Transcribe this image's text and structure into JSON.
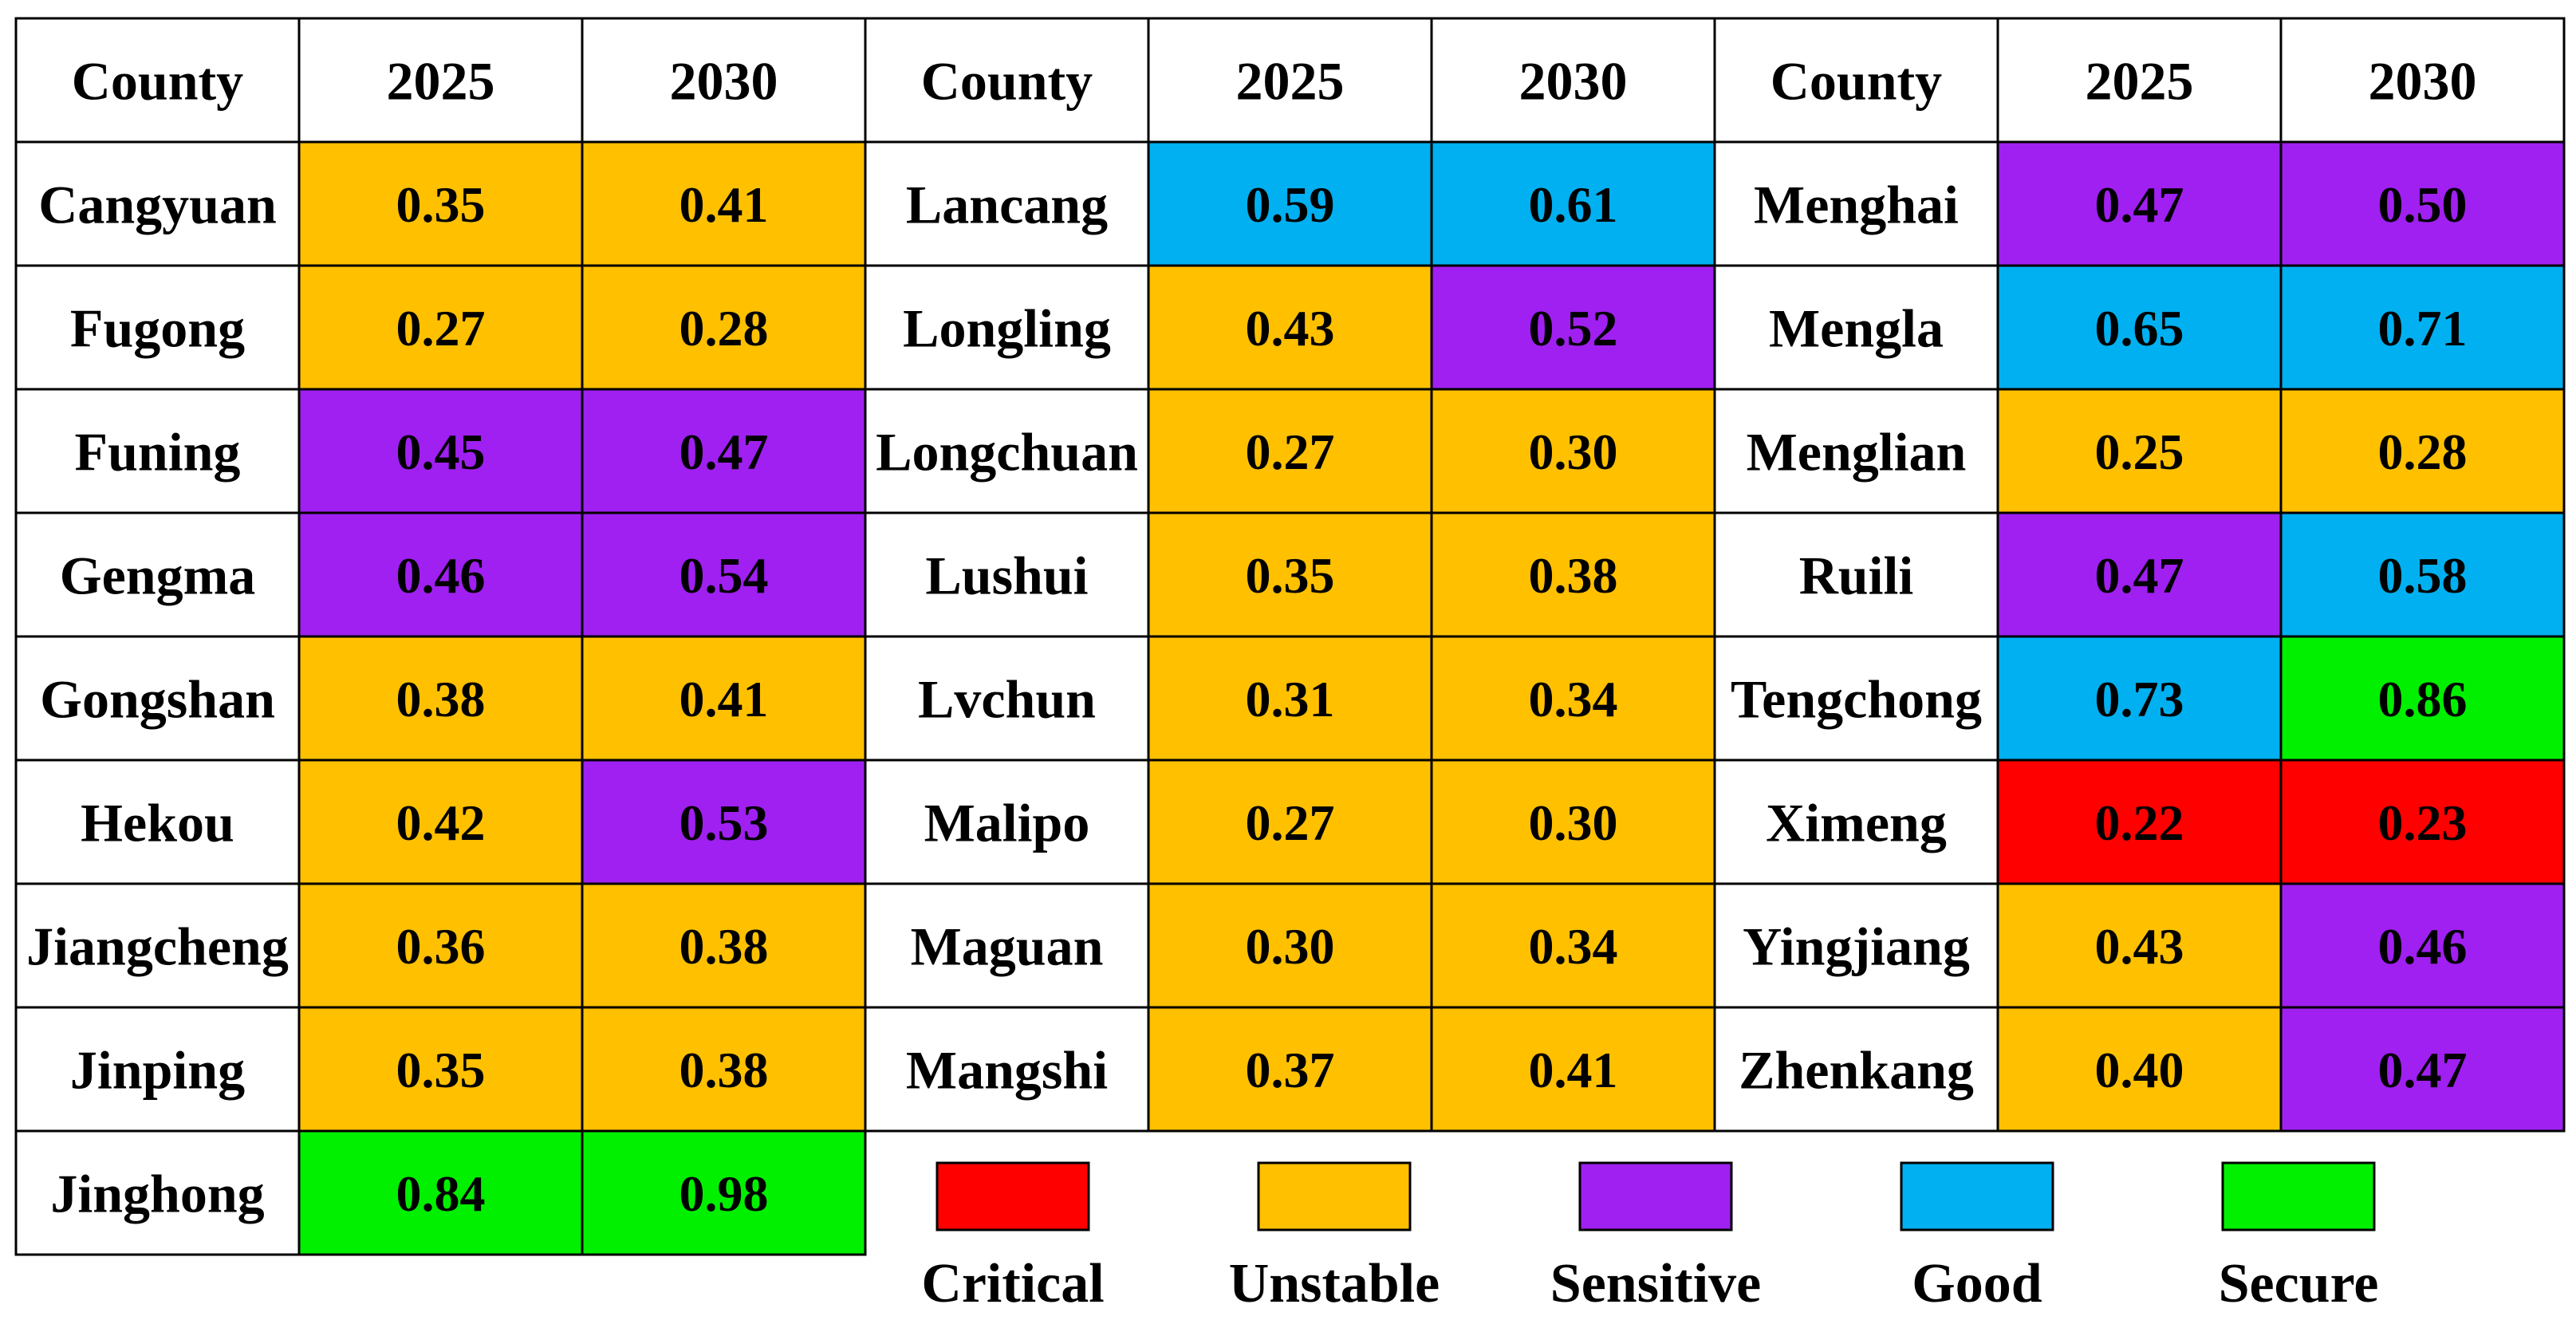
{
  "chart_data": {
    "type": "table",
    "headers": [
      "County",
      "2025",
      "2030",
      "County",
      "2025",
      "2030",
      "County",
      "2025",
      "2030"
    ],
    "colors": {
      "Critical": "#ff0000",
      "Unstable": "#ffc000",
      "Sensitive": "#9f20f0",
      "Good": "#00b0f0",
      "Secure": "#00f000"
    },
    "groups": [
      {
        "rows": [
          {
            "county": "Cangyuan",
            "v2025": "0.35",
            "c2025": "Unstable",
            "v2030": "0.41",
            "c2030": "Unstable"
          },
          {
            "county": "Fugong",
            "v2025": "0.27",
            "c2025": "Unstable",
            "v2030": "0.28",
            "c2030": "Unstable"
          },
          {
            "county": "Funing",
            "v2025": "0.45",
            "c2025": "Sensitive",
            "v2030": "0.47",
            "c2030": "Sensitive"
          },
          {
            "county": "Gengma",
            "v2025": "0.46",
            "c2025": "Sensitive",
            "v2030": "0.54",
            "c2030": "Sensitive"
          },
          {
            "county": "Gongshan",
            "v2025": "0.38",
            "c2025": "Unstable",
            "v2030": "0.41",
            "c2030": "Unstable"
          },
          {
            "county": "Hekou",
            "v2025": "0.42",
            "c2025": "Unstable",
            "v2030": "0.53",
            "c2030": "Sensitive"
          },
          {
            "county": "Jiangcheng",
            "v2025": "0.36",
            "c2025": "Unstable",
            "v2030": "0.38",
            "c2030": "Unstable"
          },
          {
            "county": "Jinping",
            "v2025": "0.35",
            "c2025": "Unstable",
            "v2030": "0.38",
            "c2030": "Unstable"
          },
          {
            "county": "Jinghong",
            "v2025": "0.84",
            "c2025": "Secure",
            "v2030": "0.98",
            "c2030": "Secure"
          }
        ]
      },
      {
        "rows": [
          {
            "county": "Lancang",
            "v2025": "0.59",
            "c2025": "Good",
            "v2030": "0.61",
            "c2030": "Good"
          },
          {
            "county": "Longling",
            "v2025": "0.43",
            "c2025": "Unstable",
            "v2030": "0.52",
            "c2030": "Sensitive"
          },
          {
            "county": "Longchuan",
            "v2025": "0.27",
            "c2025": "Unstable",
            "v2030": "0.30",
            "c2030": "Unstable"
          },
          {
            "county": "Lushui",
            "v2025": "0.35",
            "c2025": "Unstable",
            "v2030": "0.38",
            "c2030": "Unstable"
          },
          {
            "county": "Lvchun",
            "v2025": "0.31",
            "c2025": "Unstable",
            "v2030": "0.34",
            "c2030": "Unstable"
          },
          {
            "county": "Malipo",
            "v2025": "0.27",
            "c2025": "Unstable",
            "v2030": "0.30",
            "c2030": "Unstable"
          },
          {
            "county": "Maguan",
            "v2025": "0.30",
            "c2025": "Unstable",
            "v2030": "0.34",
            "c2030": "Unstable"
          },
          {
            "county": "Mangshi",
            "v2025": "0.37",
            "c2025": "Unstable",
            "v2030": "0.41",
            "c2030": "Unstable"
          }
        ]
      },
      {
        "rows": [
          {
            "county": "Menghai",
            "v2025": "0.47",
            "c2025": "Sensitive",
            "v2030": "0.50",
            "c2030": "Sensitive"
          },
          {
            "county": "Mengla",
            "v2025": "0.65",
            "c2025": "Good",
            "v2030": "0.71",
            "c2030": "Good"
          },
          {
            "county": "Menglian",
            "v2025": "0.25",
            "c2025": "Unstable",
            "v2030": "0.28",
            "c2030": "Unstable"
          },
          {
            "county": "Ruili",
            "v2025": "0.47",
            "c2025": "Sensitive",
            "v2030": "0.58",
            "c2030": "Good"
          },
          {
            "county": "Tengchong",
            "v2025": "0.73",
            "c2025": "Good",
            "v2030": "0.86",
            "c2030": "Secure"
          },
          {
            "county": "Ximeng",
            "v2025": "0.22",
            "c2025": "Critical",
            "v2030": "0.23",
            "c2030": "Critical"
          },
          {
            "county": "Yingjiang",
            "v2025": "0.43",
            "c2025": "Unstable",
            "v2030": "0.46",
            "c2030": "Sensitive"
          },
          {
            "county": "Zhenkang",
            "v2025": "0.40",
            "c2025": "Unstable",
            "v2030": "0.47",
            "c2030": "Sensitive"
          }
        ]
      }
    ],
    "legend": [
      "Critical",
      "Unstable",
      "Sensitive",
      "Good",
      "Secure"
    ]
  }
}
